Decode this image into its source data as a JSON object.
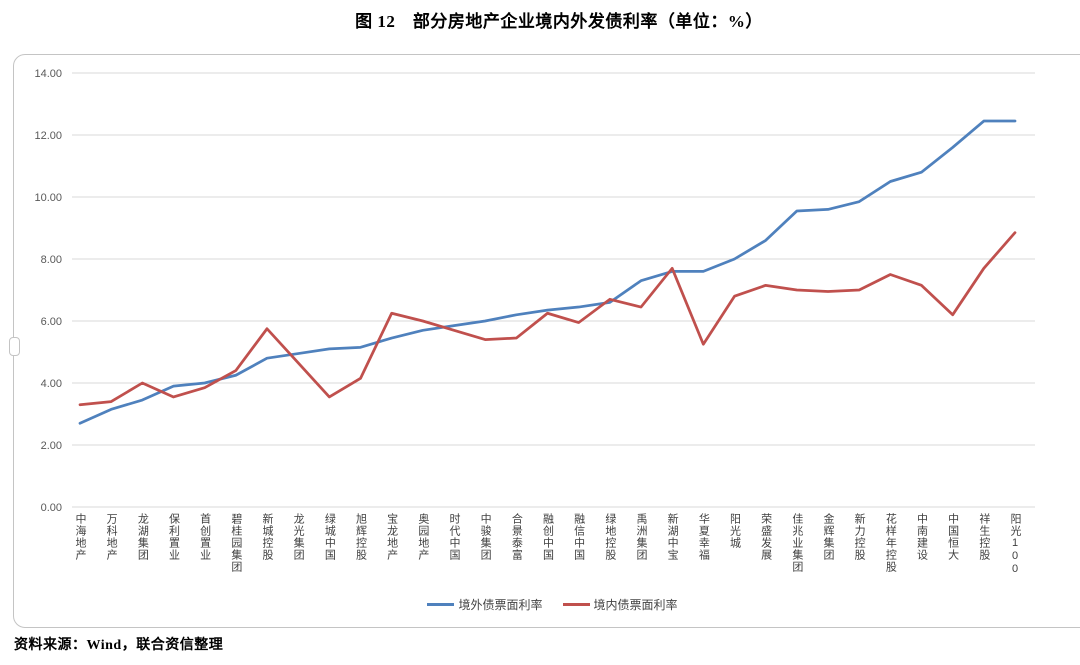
{
  "title": "图 12　部分房地产企业境内外发债利率（单位：%）",
  "source": "资料来源：Wind，联合资信整理",
  "colors": {
    "overseas_line": "#4f81bd",
    "domestic_line": "#c0504d",
    "gridline": "#d9d9d9",
    "axis_text": "#595959",
    "frame_border": "#c4c4c4"
  },
  "chart_data": {
    "type": "line",
    "title": "图 12　部分房地产企业境内外发债利率（单位：%）",
    "xlabel": "",
    "ylabel": "",
    "ylim": [
      0,
      14
    ],
    "ytick_step": 2,
    "ytick_labels": [
      "0.00",
      "2.00",
      "4.00",
      "6.00",
      "8.00",
      "10.00",
      "12.00",
      "14.00"
    ],
    "grid": true,
    "legend_position": "bottom",
    "categories": [
      "中海地产",
      "万科地产",
      "龙湖集团",
      "保利置业",
      "首创置业",
      "碧桂园集团",
      "新城控股",
      "龙光集团",
      "绿城中国",
      "旭辉控股",
      "宝龙地产",
      "奥园地产",
      "时代中国",
      "中骏集团",
      "合景泰富",
      "融创中国",
      "融信中国",
      "绿地控股",
      "禹洲集团",
      "新湖中宝",
      "华夏幸福",
      "阳光城",
      "荣盛发展",
      "佳兆业集团",
      "金辉集团",
      "新力控股",
      "花样年控股",
      "中南建设",
      "中国恒大",
      "祥生控股",
      "阳光100"
    ],
    "series": [
      {
        "name": "境外债票面利率",
        "color": "#4f81bd",
        "values": [
          2.7,
          3.15,
          3.45,
          3.9,
          4.0,
          4.25,
          4.8,
          4.95,
          5.1,
          5.15,
          5.45,
          5.7,
          5.85,
          6.0,
          6.2,
          6.35,
          6.45,
          6.6,
          7.3,
          7.6,
          7.6,
          8.0,
          8.6,
          9.55,
          9.6,
          9.85,
          10.5,
          10.8,
          11.6,
          12.45,
          12.45
        ]
      },
      {
        "name": "境内债票面利率",
        "color": "#c0504d",
        "values": [
          3.3,
          3.4,
          4.0,
          3.55,
          3.85,
          4.4,
          5.75,
          4.65,
          3.55,
          4.15,
          6.25,
          6.0,
          5.7,
          5.4,
          5.45,
          6.25,
          5.95,
          6.7,
          6.45,
          7.7,
          5.25,
          6.8,
          7.15,
          7.0,
          6.95,
          7.0,
          7.5,
          7.15,
          6.2,
          7.7,
          8.85
        ]
      }
    ]
  }
}
